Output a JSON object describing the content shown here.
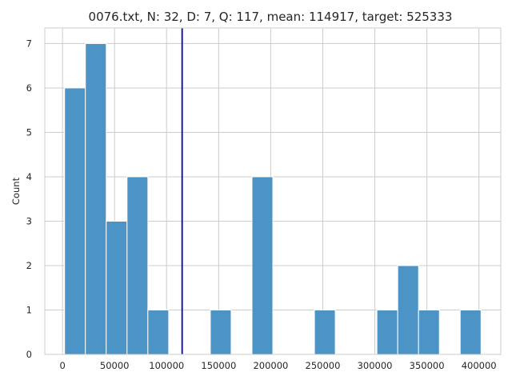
{
  "chart_data": {
    "type": "bar",
    "title": "0076.txt, N: 32, D: 7, Q: 117, mean: 114917, target: 525333",
    "xlabel": "",
    "ylabel": "Count",
    "xlim": [
      -17000,
      421000
    ],
    "ylim": [
      0,
      7.35
    ],
    "grid": true,
    "bar_color": "#4c93c6",
    "edge_color": "#ffffff",
    "mean_line": {
      "x": 114917,
      "color": "#0000c8"
    },
    "bin_width": 20000,
    "bins": [
      {
        "x0": 2000,
        "x1": 22000,
        "count": 6
      },
      {
        "x0": 22000,
        "x1": 42000,
        "count": 7
      },
      {
        "x0": 42000,
        "x1": 62000,
        "count": 3
      },
      {
        "x0": 62000,
        "x1": 82000,
        "count": 4
      },
      {
        "x0": 82000,
        "x1": 102000,
        "count": 1
      },
      {
        "x0": 142000,
        "x1": 162000,
        "count": 1
      },
      {
        "x0": 182000,
        "x1": 202000,
        "count": 4
      },
      {
        "x0": 242000,
        "x1": 262000,
        "count": 1
      },
      {
        "x0": 302000,
        "x1": 322000,
        "count": 1
      },
      {
        "x0": 322000,
        "x1": 342000,
        "count": 2
      },
      {
        "x0": 342000,
        "x1": 362000,
        "count": 1
      },
      {
        "x0": 382000,
        "x1": 402000,
        "count": 1
      }
    ],
    "x_ticks": [
      0,
      50000,
      100000,
      150000,
      200000,
      250000,
      300000,
      350000,
      400000
    ],
    "x_tick_labels": [
      "0",
      "50000",
      "100000",
      "150000",
      "200000",
      "250000",
      "300000",
      "350000",
      "400000"
    ],
    "y_ticks": [
      0,
      1,
      2,
      3,
      4,
      5,
      6,
      7
    ],
    "y_tick_labels": [
      "0",
      "1",
      "2",
      "3",
      "4",
      "5",
      "6",
      "7"
    ]
  }
}
